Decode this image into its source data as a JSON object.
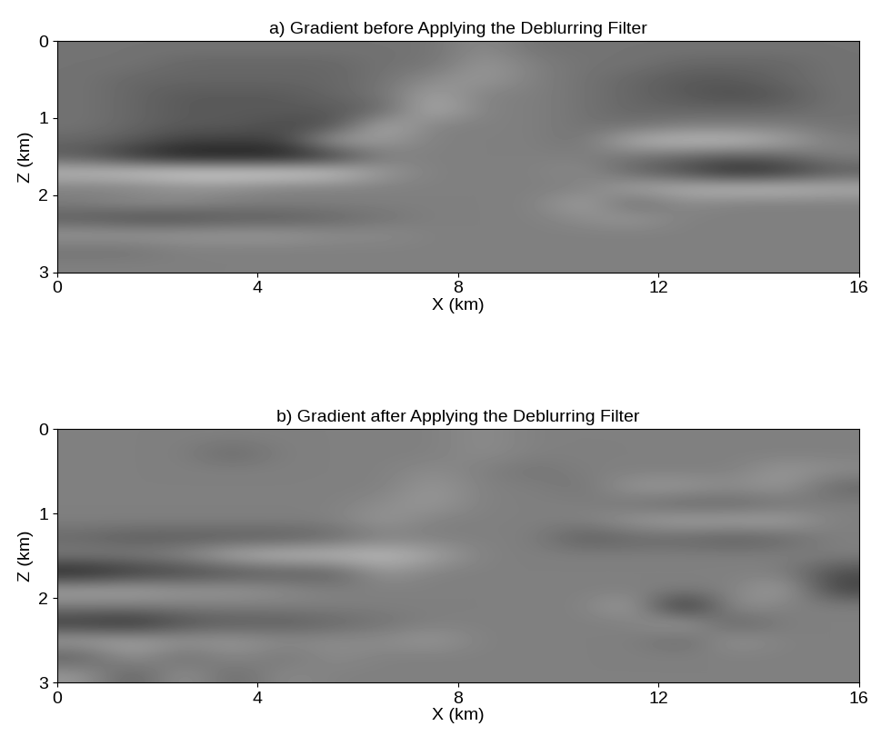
{
  "chart_data": [
    {
      "type": "heatmap",
      "title": "a) Gradient before Applying the Deblurring Filter",
      "x_label": "X (km)",
      "y_label": "Z (km)",
      "color": "gray",
      "xlim": [
        0,
        16
      ],
      "ylim": [
        3,
        0
      ],
      "xticks": [
        0,
        4,
        8,
        12,
        16
      ],
      "yticks": [
        0,
        1,
        2,
        3
      ],
      "cell_range": [
        -1,
        1
      ],
      "cells": [
        [
          -0.1,
          -0.1,
          -0.1,
          -0.1,
          -0.1,
          -0.1,
          -0.1,
          -0.1,
          0.1,
          -0.1,
          -0.1,
          -0.1,
          -0.1,
          -0.1,
          -0.1,
          -0.1
        ],
        [
          -0.1,
          -0.1,
          -0.2,
          -0.2,
          -0.2,
          -0.2,
          -0.1,
          -0.1,
          0.2,
          0,
          -0.1,
          -0.1,
          -0.2,
          -0.2,
          -0.2,
          -0.1
        ],
        [
          -0.1,
          -0.2,
          -0.2,
          -0.2,
          -0.2,
          -0.2,
          -0.1,
          0.1,
          0.2,
          0,
          -0.1,
          -0.2,
          -0.3,
          -0.3,
          -0.2,
          -0.1
        ],
        [
          -0.1,
          -0.2,
          -0.3,
          -0.3,
          -0.3,
          -0.2,
          -0.1,
          0.3,
          0,
          0,
          -0.1,
          -0.2,
          -0.3,
          -0.4,
          -0.3,
          -0.1
        ],
        [
          -0.1,
          -0.2,
          -0.3,
          -0.3,
          -0.3,
          -0.3,
          -0.2,
          0.4,
          0,
          0,
          -0.1,
          -0.2,
          -0.2,
          -0.2,
          -0.2,
          -0.1
        ],
        [
          -0.1,
          -0.2,
          -0.3,
          -0.3,
          -0.4,
          -0.4,
          0.4,
          0,
          0,
          0,
          -0.1,
          -0.1,
          0,
          0,
          0,
          -0.1
        ],
        [
          -0.2,
          -0.3,
          -0.5,
          -0.5,
          -0.5,
          0.3,
          0.2,
          0,
          0,
          0,
          -0.1,
          0.4,
          0.5,
          0.5,
          0.3,
          0
        ],
        [
          -0.3,
          -0.6,
          -0.8,
          -0.8,
          -0.8,
          -0.6,
          0,
          0,
          0,
          0,
          0,
          -0.1,
          -0.2,
          -0.3,
          -0.2,
          0
        ],
        [
          0.5,
          0.6,
          0.7,
          0.7,
          0.7,
          0.6,
          0.2,
          0,
          0,
          0,
          0.1,
          -0.2,
          -0.4,
          -0.7,
          -0.6,
          -0.3
        ],
        [
          0,
          0,
          0.1,
          0.1,
          0,
          0,
          0,
          0,
          0,
          0,
          0,
          0.3,
          0.4,
          0.5,
          0.5,
          0.4
        ],
        [
          0,
          0.1,
          0.1,
          0,
          0,
          0,
          0,
          0,
          0,
          0,
          0.3,
          -0.2,
          0.1,
          0,
          0,
          0
        ],
        [
          -0.3,
          -0.4,
          -0.4,
          -0.3,
          -0.3,
          -0.2,
          -0.1,
          0,
          0,
          0,
          0.1,
          0.2,
          0,
          0,
          0,
          0
        ],
        [
          0.2,
          0.2,
          0.2,
          0.2,
          0.2,
          0.1,
          0.1,
          0,
          0,
          0,
          0,
          0,
          0,
          0,
          0,
          0
        ],
        [
          -0.1,
          -0.1,
          0,
          0,
          0,
          0,
          0,
          0,
          0,
          0,
          0,
          0,
          0,
          0,
          0,
          0
        ],
        [
          0,
          0,
          0,
          0,
          0,
          0,
          0,
          0,
          0,
          0,
          0,
          0,
          0,
          0,
          0,
          0
        ]
      ]
    },
    {
      "type": "heatmap",
      "title": "b) Gradient after Applying the Deblurring Filter",
      "x_label": "X (km)",
      "y_label": "Z (km)",
      "color": "gray",
      "xlim": [
        0,
        16
      ],
      "ylim": [
        3,
        0
      ],
      "xticks": [
        0,
        4,
        8,
        12,
        16
      ],
      "yticks": [
        0,
        1,
        2,
        3
      ],
      "cell_range": [
        -1,
        1
      ],
      "cells": [
        [
          0,
          0,
          0,
          0,
          0,
          0,
          0,
          0,
          0.1,
          0,
          0,
          0,
          0,
          0,
          0,
          0
        ],
        [
          0,
          0,
          0,
          -0.2,
          0,
          0,
          0,
          0,
          0.1,
          0,
          0,
          0,
          0,
          0,
          0,
          0
        ],
        [
          0,
          0,
          0,
          0,
          0,
          0,
          0,
          0.1,
          0,
          -0.1,
          0,
          0,
          0,
          0,
          0.2,
          0.1
        ],
        [
          0,
          0,
          0,
          0,
          0,
          0,
          0,
          0.2,
          0,
          0,
          -0.1,
          0.2,
          0.2,
          0.1,
          0.2,
          -0.2
        ],
        [
          0,
          0,
          0,
          0,
          0,
          0,
          0.1,
          0.2,
          0,
          0,
          0,
          -0.1,
          -0.2,
          -0.2,
          -0.1,
          0
        ],
        [
          0,
          0,
          0,
          0,
          0,
          0,
          0.2,
          0,
          0,
          0,
          0,
          0.2,
          0.3,
          0.3,
          0.3,
          0
        ],
        [
          -0.2,
          -0.3,
          -0.3,
          -0.3,
          -0.3,
          -0.2,
          0,
          0,
          0,
          0,
          -0.3,
          -0.2,
          -0.2,
          -0.3,
          -0.2,
          0
        ],
        [
          0,
          0,
          0.1,
          0.4,
          0.5,
          0.5,
          0.5,
          0.3,
          0,
          0,
          0,
          0,
          0,
          0,
          0,
          0
        ],
        [
          -0.8,
          -0.6,
          -0.5,
          -0.4,
          -0.3,
          -0.3,
          0.2,
          0,
          0,
          0,
          0,
          0,
          0,
          0,
          0,
          -0.4
        ],
        [
          0.3,
          0.3,
          0.2,
          0.2,
          0.1,
          0,
          0,
          0,
          0,
          0,
          0,
          0,
          0,
          0,
          0.3,
          -0.5
        ],
        [
          0,
          0,
          0,
          0,
          0,
          0,
          0,
          0,
          0,
          0,
          0,
          0.3,
          -0.8,
          0.2,
          0,
          0
        ],
        [
          -0.6,
          -0.7,
          -0.4,
          -0.3,
          -0.3,
          -0.2,
          -0.1,
          0,
          0,
          0,
          0,
          0,
          0.3,
          -0.3,
          0,
          0
        ],
        [
          0.3,
          0.3,
          0.2,
          0.2,
          0.1,
          0.1,
          0.1,
          0.2,
          0,
          0,
          0,
          0,
          -0.2,
          0.2,
          0,
          0
        ],
        [
          -0.3,
          0.2,
          -0.2,
          0.1,
          -0.1,
          0.1,
          0,
          0,
          0,
          0,
          0,
          0,
          0,
          0,
          0,
          0
        ],
        [
          0.2,
          -0.3,
          0.2,
          -0.2,
          0.1,
          0,
          0,
          0,
          0,
          0,
          0,
          0,
          0,
          0,
          0,
          0
        ]
      ]
    }
  ]
}
